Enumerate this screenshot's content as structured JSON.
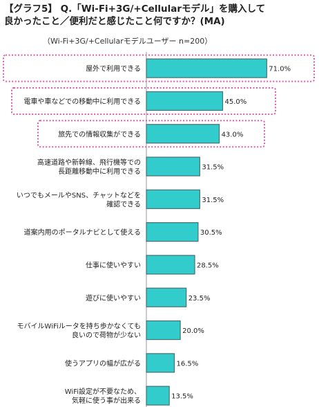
{
  "title_line1": "【グラフ5】 Q.「Wi-Fi+3G/+Cellularモデル」を購入して",
  "title_line2": "良かったこと／便利だと感じたこと何ですか？(MA)",
  "subtitle": "（Wi-Fi+3G/+Cellularモデルユーザー n=200）",
  "colors": {
    "bar": "#33cccc",
    "bar_stroke": "#4a6e72",
    "highlight": "#e05aa8",
    "axis": "#999999"
  },
  "chart_data": {
    "type": "bar",
    "orientation": "horizontal",
    "unit": "%",
    "xlim": [
      0,
      80
    ],
    "categories": [
      [
        "屋外で利用できる"
      ],
      [
        "電車や車などでの移動中に利用できる"
      ],
      [
        "旅先での情報収集ができる"
      ],
      [
        "高速道路や新幹線、飛行機等での",
        "長距離移動中に利用できる"
      ],
      [
        "いつでもメールやSNS、チャットなどを",
        "確認できる"
      ],
      [
        "道案内用のポータルナビとして使える"
      ],
      [
        "仕事に使いやすい"
      ],
      [
        "遊びに使いやすい"
      ],
      [
        "モバイルWiFiルータを持ち歩かなくても",
        "良いので荷物が少ない"
      ],
      [
        "使うアプリの幅が広がる"
      ],
      [
        "WiFi設定が不要なため、",
        "気軽に使う事が出来る"
      ]
    ],
    "values": [
      71.0,
      45.0,
      43.0,
      31.5,
      31.5,
      30.5,
      28.5,
      23.5,
      20.0,
      16.5,
      13.5
    ],
    "value_labels": [
      "71.0%",
      "45.0%",
      "43.0%",
      "31.5%",
      "31.5%",
      "30.5%",
      "28.5%",
      "23.5%",
      "20.0%",
      "16.5%",
      "13.5%"
    ],
    "highlighted": [
      0,
      1,
      2
    ]
  }
}
